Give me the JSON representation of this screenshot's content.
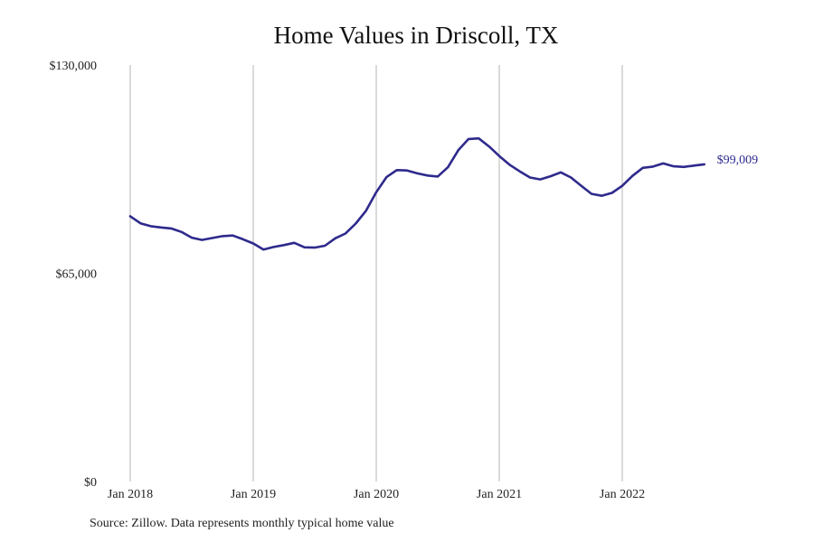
{
  "chart_data": {
    "type": "line",
    "title": "Home Values in Driscoll, TX",
    "xlabel": "",
    "ylabel": "",
    "ylim": [
      0,
      130000
    ],
    "y_ticks": [
      0,
      65000,
      130000
    ],
    "y_tick_labels": [
      "$0",
      "$65,000",
      "$130,000"
    ],
    "x_ticks": [
      "2018-01",
      "2019-01",
      "2020-01",
      "2021-01",
      "2022-01"
    ],
    "x_tick_labels": [
      "Jan 2018",
      "Jan 2019",
      "Jan 2020",
      "Jan 2021",
      "Jan 2022"
    ],
    "grid": "vertical",
    "line_color": "#2e2a8c",
    "end_value_label": "$99,009",
    "x": [
      "2018-01",
      "2018-02",
      "2018-03",
      "2018-04",
      "2018-05",
      "2018-06",
      "2018-07",
      "2018-08",
      "2018-09",
      "2018-10",
      "2018-11",
      "2018-12",
      "2019-01",
      "2019-02",
      "2019-03",
      "2019-04",
      "2019-05",
      "2019-06",
      "2019-07",
      "2019-08",
      "2019-09",
      "2019-10",
      "2019-11",
      "2019-12",
      "2020-01",
      "2020-02",
      "2020-03",
      "2020-04",
      "2020-05",
      "2020-06",
      "2020-07",
      "2020-08",
      "2020-09",
      "2020-10",
      "2020-11",
      "2020-12",
      "2021-01",
      "2021-02",
      "2021-03",
      "2021-04",
      "2021-05",
      "2021-06",
      "2021-07",
      "2021-08",
      "2021-09",
      "2021-10",
      "2021-11",
      "2021-12",
      "2022-01",
      "2022-02",
      "2022-03",
      "2022-04",
      "2022-05",
      "2022-06",
      "2022-07",
      "2022-08",
      "2022-09"
    ],
    "values": [
      82800,
      80600,
      79700,
      79300,
      79000,
      77900,
      76100,
      75400,
      76000,
      76600,
      76800,
      75600,
      74300,
      72400,
      73200,
      73800,
      74500,
      73100,
      73000,
      73600,
      75900,
      77400,
      80500,
      84500,
      90300,
      95000,
      97200,
      97100,
      96200,
      95500,
      95200,
      98100,
      103400,
      106900,
      107100,
      104600,
      101600,
      98900,
      96800,
      94900,
      94300,
      95300,
      96500,
      94900,
      92300,
      89800,
      89200,
      90100,
      92300,
      95400,
      97900,
      98300,
      99300,
      98400,
      98200,
      98600,
      99009
    ]
  },
  "source_note": "Source: Zillow. Data represents monthly typical home value"
}
